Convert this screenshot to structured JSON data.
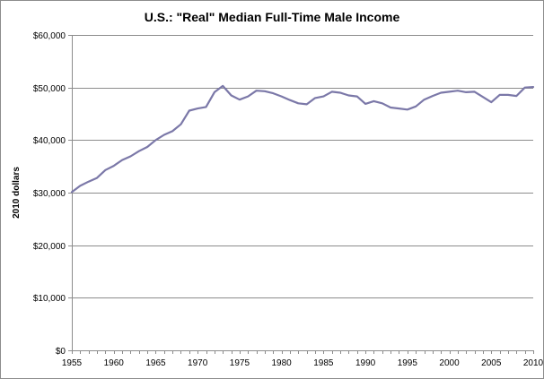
{
  "chart_data": {
    "type": "line",
    "title": "U.S.: \"Real\" Median Full-Time Male Income",
    "xlabel": "",
    "ylabel": "2010 dollars",
    "xlim": [
      1955,
      2010
    ],
    "ylim": [
      0,
      60000
    ],
    "x_ticks": [
      1955,
      1960,
      1965,
      1970,
      1975,
      1980,
      1985,
      1990,
      1995,
      2000,
      2005,
      2010
    ],
    "x_tick_labels": [
      "1955",
      "1960",
      "1965",
      "1970",
      "1975",
      "1980",
      "1985",
      "1990",
      "1995",
      "2000",
      "2005",
      "2010"
    ],
    "y_ticks": [
      0,
      10000,
      20000,
      30000,
      40000,
      50000,
      60000
    ],
    "y_tick_labels": [
      "$0",
      "$10,000",
      "$20,000",
      "$30,000",
      "$40,000",
      "$50,000",
      "$60,000"
    ],
    "grid": true,
    "legend": "none",
    "line_color": "#7b78a8",
    "series": [
      {
        "x": [
          1955,
          1956,
          1957,
          1958,
          1959,
          1960,
          1961,
          1962,
          1963,
          1964,
          1965,
          1966,
          1967,
          1968,
          1969,
          1970,
          1971,
          1972,
          1973,
          1974,
          1975,
          1976,
          1977,
          1978,
          1979,
          1980,
          1981,
          1982,
          1983,
          1984,
          1985,
          1986,
          1987,
          1988,
          1989,
          1990,
          1991,
          1992,
          1993,
          1994,
          1995,
          1996,
          1997,
          1998,
          1999,
          2000,
          2001,
          2002,
          2003,
          2004,
          2005,
          2006,
          2007,
          2008,
          2009,
          2010
        ],
        "values": [
          30100,
          31300,
          32100,
          32800,
          34300,
          35100,
          36200,
          36900,
          37900,
          38700,
          40000,
          41000,
          41700,
          43000,
          45600,
          46000,
          46300,
          49100,
          50300,
          48500,
          47700,
          48300,
          49400,
          49300,
          48900,
          48300,
          47600,
          47000,
          46800,
          48000,
          48300,
          49200,
          49000,
          48500,
          48300,
          46900,
          47400,
          47000,
          46200,
          46000,
          45800,
          46400,
          47700,
          48400,
          49000,
          49200,
          49400,
          49100,
          49200,
          48200,
          47200,
          48600,
          48600,
          48400,
          50000,
          50100
        ]
      }
    ]
  }
}
